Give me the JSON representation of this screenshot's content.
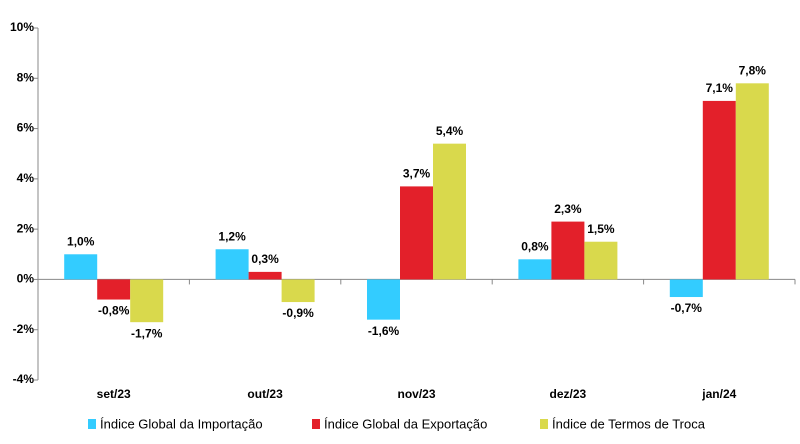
{
  "chart_data": {
    "type": "bar",
    "categories": [
      "set/23",
      "out/23",
      "nov/23",
      "dez/23",
      "jan/24"
    ],
    "series": [
      {
        "name": "Índice Global da Importação",
        "color": "#33ccff",
        "values": [
          1.0,
          1.2,
          -1.6,
          0.8,
          -0.7
        ],
        "value_labels": [
          "1,0%",
          "1,2%",
          "-1,6%",
          "0,8%",
          "-0,7%"
        ]
      },
      {
        "name": "Índice Global da Exportação",
        "color": "#e3202a",
        "values": [
          -0.8,
          0.3,
          3.7,
          2.3,
          7.1
        ],
        "value_labels": [
          "-0,8%",
          "0,3%",
          "3,7%",
          "2,3%",
          "7,1%"
        ]
      },
      {
        "name": "Índice de Termos de Troca",
        "color": "#d9d94c",
        "values": [
          -1.7,
          -0.9,
          5.4,
          1.5,
          7.8
        ],
        "value_labels": [
          "-1,7%",
          "-0,9%",
          "5,4%",
          "1,5%",
          "7,8%"
        ]
      }
    ],
    "ylim": [
      -4,
      10
    ],
    "yticks": [
      {
        "value": -4,
        "label": "-4%"
      },
      {
        "value": -2,
        "label": "-2%"
      },
      {
        "value": 0,
        "label": "0%"
      },
      {
        "value": 2,
        "label": "2%"
      },
      {
        "value": 4,
        "label": "4%"
      },
      {
        "value": 6,
        "label": "6%"
      },
      {
        "value": 8,
        "label": "8%"
      },
      {
        "value": 10,
        "label": "10%"
      }
    ],
    "grid": false,
    "legend": "bottom"
  }
}
